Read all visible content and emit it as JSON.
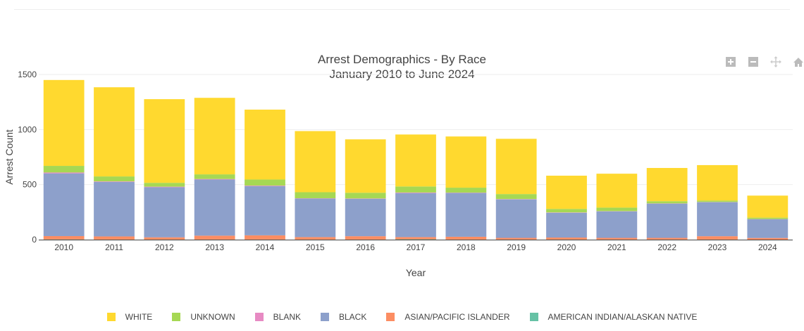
{
  "chart_data": {
    "type": "bar",
    "stacked": true,
    "title": "Arrest Demographics - By Race",
    "subtitle": "January 2010 to June 2024",
    "xlabel": "Year",
    "ylabel": "Arrest Count",
    "ylim": [
      0,
      1500
    ],
    "yticks": [
      0,
      500,
      1000,
      1500
    ],
    "grid": true,
    "legend_position": "bottom",
    "categories": [
      "2010",
      "2011",
      "2012",
      "2013",
      "2014",
      "2015",
      "2016",
      "2017",
      "2018",
      "2019",
      "2020",
      "2021",
      "2022",
      "2023",
      "2024"
    ],
    "series": [
      {
        "name": "AMERICAN INDIAN/ALASKAN NATIVE",
        "color": "#66c2a5",
        "values": [
          2,
          1,
          1,
          1,
          1,
          1,
          1,
          3,
          1,
          1,
          1,
          1,
          1,
          1,
          0
        ]
      },
      {
        "name": "ASIAN/PACIFIC ISLANDER",
        "color": "#fc8d62",
        "values": [
          30,
          28,
          20,
          35,
          38,
          22,
          30,
          20,
          25,
          15,
          18,
          15,
          15,
          30,
          15
        ]
      },
      {
        "name": "BLACK",
        "color": "#8da0cb",
        "values": [
          570,
          495,
          455,
          510,
          447,
          350,
          340,
          400,
          398,
          350,
          225,
          241,
          311,
          309,
          170
        ]
      },
      {
        "name": "BLANK",
        "color": "#e78ac3",
        "values": [
          8,
          5,
          5,
          5,
          5,
          3,
          3,
          5,
          3,
          3,
          3,
          2,
          2,
          2,
          2
        ]
      },
      {
        "name": "UNKNOWN",
        "color": "#a6d854",
        "values": [
          60,
          45,
          35,
          42,
          55,
          55,
          52,
          55,
          45,
          45,
          32,
          32,
          20,
          13,
          13
        ]
      },
      {
        "name": "WHITE",
        "color": "#ffd92f",
        "values": [
          780,
          810,
          760,
          695,
          635,
          555,
          485,
          472,
          465,
          502,
          302,
          308,
          302,
          322,
          200
        ]
      }
    ]
  },
  "legend_order": [
    "WHITE",
    "UNKNOWN",
    "BLANK",
    "BLACK",
    "ASIAN/PACIFIC ISLANDER",
    "AMERICAN INDIAN/ALASKAN NATIVE"
  ],
  "modebar": [
    "zoom-in-icon",
    "zoom-out-icon",
    "pan-icon",
    "home-icon"
  ]
}
